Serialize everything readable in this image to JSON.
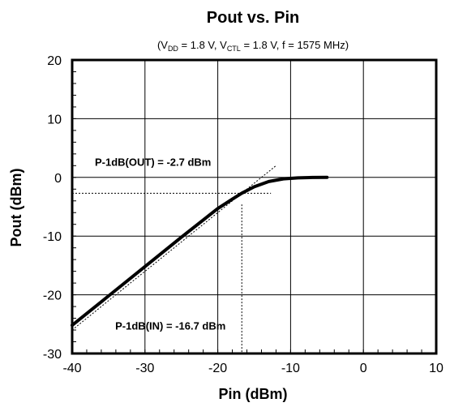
{
  "chart_data": {
    "type": "line",
    "title": "Pout vs. Pin",
    "subtitle": {
      "prefix": "(V",
      "vdd_sub": "DD",
      "vdd_val": " = 1.8 V, V",
      "vctl_sub": "CTL",
      "rest": " = 1.8 V, f = 1575 MHz)"
    },
    "xlabel": "Pin (dBm)",
    "ylabel": "Pout (dBm)",
    "xlim": [
      -40,
      10
    ],
    "ylim": [
      -30,
      20
    ],
    "x_ticks": [
      -40,
      -30,
      -20,
      -10,
      0,
      10
    ],
    "y_ticks": [
      -30,
      -20,
      -10,
      0,
      10,
      20
    ],
    "x_tick_labels": [
      "-40",
      "-30",
      "-20",
      "-10",
      "0",
      "10"
    ],
    "y_tick_labels": [
      "-30",
      "-20",
      "-10",
      "0",
      "10",
      "20"
    ],
    "grid": true,
    "series": [
      {
        "x": [
          -40,
          -35,
          -30,
          -25,
          -20,
          -18,
          -16.7,
          -15,
          -13,
          -11,
          -9,
          -7,
          -5
        ],
        "y": [
          -25.2,
          -20.2,
          -15.2,
          -10.2,
          -5.3,
          -3.7,
          -2.7,
          -1.6,
          -0.7,
          -0.25,
          -0.08,
          -0.02,
          0.0
        ]
      }
    ],
    "reference_line": {
      "x": [
        -40,
        -12
      ],
      "y": [
        -26,
        2
      ]
    },
    "annotations": {
      "p1db_out": {
        "label": "P-1dB(OUT) = -2.7 dBm",
        "value": -2.7
      },
      "p1db_in": {
        "label": "P-1dB(IN) = -16.7 dBm",
        "value": -16.7
      }
    }
  }
}
